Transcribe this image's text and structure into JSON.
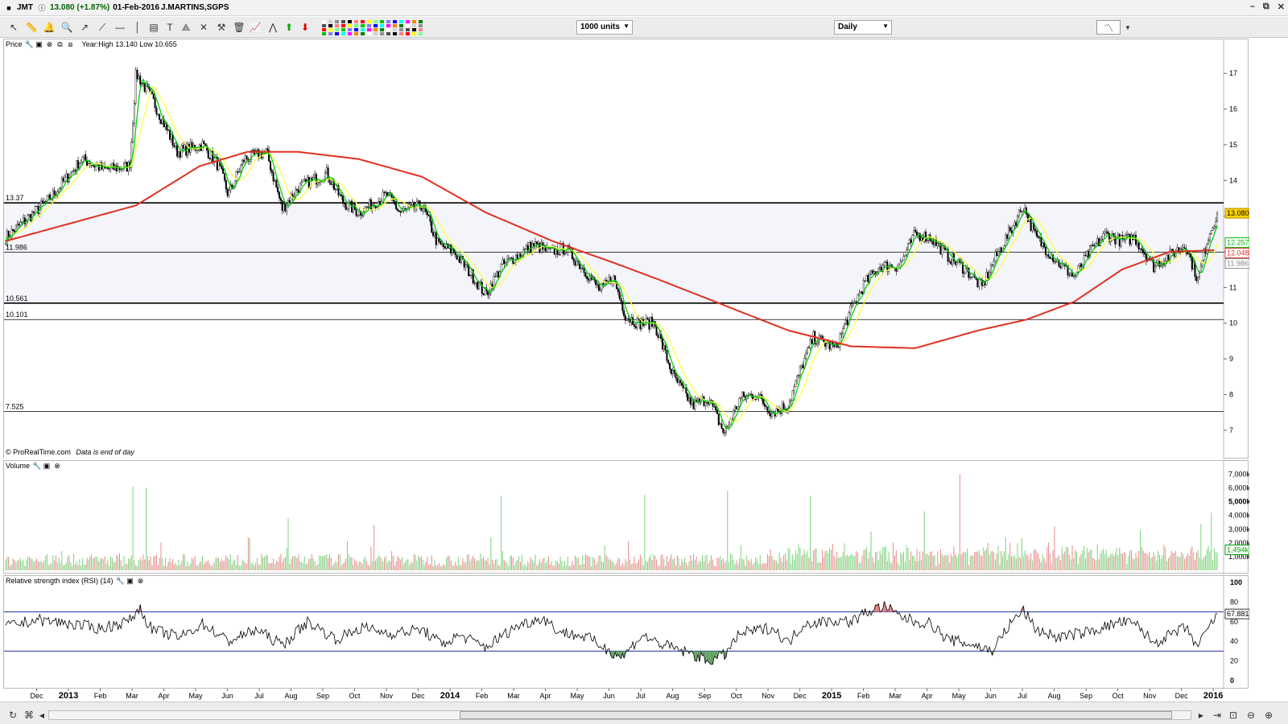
{
  "window": {
    "ticker": "JMT",
    "quote": "13.080 (+1.87%)",
    "date": "01-Feb-2016",
    "name": "J.MARTINS,SGPS"
  },
  "toolbar": {
    "units_select": "1000 units",
    "period_select": "Daily"
  },
  "price_panel": {
    "label": "Price",
    "info": "Year:High 13.140 Low 10.655",
    "footer_brand": "© ProRealTime.com",
    "footer_note": "Data is end of day",
    "levels": [
      {
        "label": "13.37",
        "value": 13.37,
        "weight": "bold"
      },
      {
        "label": "11.986",
        "value": 11.986,
        "weight": "thin"
      },
      {
        "label": "10.561",
        "value": 10.561,
        "weight": "bold"
      },
      {
        "label": "10.101",
        "value": 10.101,
        "weight": "thin"
      },
      {
        "label": "7.525",
        "value": 7.525,
        "weight": "thin"
      }
    ],
    "y_ticks": [
      "7",
      "8",
      "9",
      "10",
      "11",
      "12",
      "13",
      "14",
      "15",
      "16",
      "17"
    ],
    "badges": [
      {
        "label": "13.080",
        "value": 13.08,
        "bg": "#ffd200",
        "border": "#b38f00"
      },
      {
        "label": "12.257",
        "value": 12.257,
        "bg": "#ffffff",
        "border": "#00c000"
      },
      {
        "label": "12.048",
        "value": 12.048,
        "bg": "#ffffff",
        "border": "#e03020"
      },
      {
        "label": "11.986",
        "value": 11.986,
        "bg": "#ffffff",
        "border": "#888888"
      }
    ]
  },
  "volume_panel": {
    "label": "Volume",
    "y_ticks": [
      "1,000k",
      "2,000k",
      "3,000k",
      "4,000k",
      "5,000k",
      "6,000k",
      "7,000k"
    ],
    "y_tick_values": [
      1000,
      2000,
      3000,
      4000,
      5000,
      6000,
      7000
    ],
    "badge": "1,494k",
    "badge_value": 1494
  },
  "rsi_panel": {
    "label": "Relative strength index (RSI) (14)",
    "y_ticks": [
      "0",
      "20",
      "40",
      "60",
      "80",
      "100"
    ],
    "y_tick_values": [
      0,
      20,
      40,
      60,
      80,
      100
    ],
    "badge": "67.881",
    "badge_value": 67.881,
    "overbought": 70,
    "oversold": 30
  },
  "x_axis": {
    "labels": [
      "Dec",
      "2013",
      "Feb",
      "Mar",
      "Apr",
      "May",
      "Jun",
      "Jul",
      "Aug",
      "Sep",
      "Oct",
      "Nov",
      "Dec",
      "2014",
      "Feb",
      "Mar",
      "Apr",
      "May",
      "Jun",
      "Jul",
      "Aug",
      "Sep",
      "Oct",
      "Nov",
      "Dec",
      "2015",
      "Feb",
      "Mar",
      "Apr",
      "May",
      "Jun",
      "Jul",
      "Aug",
      "Sep",
      "Oct",
      "Nov",
      "Dec",
      "2016"
    ],
    "bold": [
      "2013",
      "2014",
      "2015",
      "2016"
    ]
  },
  "chart_data": {
    "type": "candlestick",
    "ylim": [
      6.5,
      17.5
    ],
    "x_start": "2012-11",
    "x_end": "2016-02",
    "price_anchors": [
      [
        0,
        12.4
      ],
      [
        1.4,
        13.5
      ],
      [
        2.4,
        14.6
      ],
      [
        3.1,
        14.3
      ],
      [
        3.9,
        14.4
      ],
      [
        4.1,
        17.0
      ],
      [
        4.6,
        16.3
      ],
      [
        5.4,
        14.8
      ],
      [
        6.2,
        15.0
      ],
      [
        6.7,
        14.4
      ],
      [
        7.0,
        13.6
      ],
      [
        7.5,
        14.6
      ],
      [
        8.2,
        14.8
      ],
      [
        8.7,
        13.2
      ],
      [
        9.2,
        13.8
      ],
      [
        10.1,
        14.2
      ],
      [
        10.6,
        13.4
      ],
      [
        11.1,
        13.1
      ],
      [
        12.0,
        13.6
      ],
      [
        12.4,
        13.1
      ],
      [
        13.1,
        13.3
      ],
      [
        13.6,
        12.2
      ],
      [
        14.1,
        12.0
      ],
      [
        14.7,
        11.3
      ],
      [
        15.1,
        10.8
      ],
      [
        15.6,
        11.6
      ],
      [
        16.1,
        11.9
      ],
      [
        16.6,
        12.2
      ],
      [
        17.1,
        12.0
      ],
      [
        17.6,
        12.1
      ],
      [
        18.2,
        11.5
      ],
      [
        18.7,
        10.9
      ],
      [
        19.1,
        11.3
      ],
      [
        19.5,
        10.2
      ],
      [
        19.9,
        10.0
      ],
      [
        20.4,
        10.0
      ],
      [
        21.0,
        8.5
      ],
      [
        21.6,
        7.7
      ],
      [
        22.1,
        7.9
      ],
      [
        22.6,
        6.9
      ],
      [
        23.1,
        7.9
      ],
      [
        23.6,
        8.0
      ],
      [
        24.1,
        7.5
      ],
      [
        24.6,
        7.7
      ],
      [
        25.0,
        8.7
      ],
      [
        25.4,
        9.6
      ],
      [
        26.1,
        9.3
      ],
      [
        26.6,
        10.4
      ],
      [
        27.0,
        11.1
      ],
      [
        27.5,
        11.6
      ],
      [
        28.1,
        11.6
      ],
      [
        28.6,
        12.5
      ],
      [
        29.1,
        12.4
      ],
      [
        29.6,
        11.9
      ],
      [
        30.2,
        11.5
      ],
      [
        30.7,
        11.0
      ],
      [
        31.1,
        11.8
      ],
      [
        31.6,
        12.6
      ],
      [
        32.0,
        13.3
      ],
      [
        32.4,
        12.4
      ],
      [
        33.1,
        11.7
      ],
      [
        33.6,
        11.3
      ],
      [
        34.1,
        12.0
      ],
      [
        34.6,
        12.5
      ],
      [
        35.1,
        12.3
      ],
      [
        35.5,
        12.4
      ],
      [
        36.1,
        11.6
      ],
      [
        36.6,
        11.9
      ],
      [
        37.1,
        12.2
      ],
      [
        37.5,
        11.2
      ],
      [
        37.8,
        12.4
      ],
      [
        38.1,
        13.08
      ]
    ],
    "sma_200_anchors": [
      [
        0,
        12.3
      ],
      [
        4.1,
        13.3
      ],
      [
        6.1,
        14.4
      ],
      [
        7.6,
        14.8
      ],
      [
        9.2,
        14.8
      ],
      [
        11.1,
        14.6
      ],
      [
        13.1,
        14.1
      ],
      [
        15.1,
        13.1
      ],
      [
        17.2,
        12.3
      ],
      [
        19.1,
        11.7
      ],
      [
        20.6,
        11.2
      ],
      [
        22.6,
        10.5
      ],
      [
        24.6,
        9.8
      ],
      [
        26.6,
        9.35
      ],
      [
        28.6,
        9.3
      ],
      [
        30.6,
        9.8
      ],
      [
        32.1,
        10.1
      ],
      [
        33.6,
        10.6
      ],
      [
        35.1,
        11.5
      ],
      [
        36.6,
        12.0
      ],
      [
        38.1,
        12.048
      ]
    ],
    "rsi_anchors": [
      [
        0,
        55
      ],
      [
        1,
        62
      ],
      [
        2,
        58
      ],
      [
        3,
        53
      ],
      [
        3.9,
        61
      ],
      [
        4.2,
        74
      ],
      [
        4.6,
        52
      ],
      [
        5.5,
        44
      ],
      [
        6.2,
        58
      ],
      [
        7.0,
        40
      ],
      [
        7.9,
        52
      ],
      [
        8.7,
        36
      ],
      [
        9.5,
        60
      ],
      [
        10.4,
        42
      ],
      [
        11.2,
        54
      ],
      [
        12.1,
        48
      ],
      [
        13.1,
        52
      ],
      [
        13.7,
        37
      ],
      [
        14.3,
        46
      ],
      [
        15.1,
        34
      ],
      [
        16.1,
        56
      ],
      [
        16.9,
        64
      ],
      [
        17.4,
        50
      ],
      [
        18.3,
        44
      ],
      [
        18.9,
        32
      ],
      [
        19.4,
        24
      ],
      [
        20.0,
        46
      ],
      [
        20.7,
        36
      ],
      [
        21.5,
        28
      ],
      [
        22.1,
        20
      ],
      [
        22.6,
        26
      ],
      [
        23.1,
        48
      ],
      [
        24.1,
        54
      ],
      [
        24.6,
        38
      ],
      [
        25.1,
        58
      ],
      [
        26.1,
        61
      ],
      [
        26.6,
        60
      ],
      [
        27.1,
        70
      ],
      [
        27.6,
        76
      ],
      [
        28.1,
        66
      ],
      [
        28.6,
        60
      ],
      [
        29.1,
        58
      ],
      [
        29.6,
        42
      ],
      [
        30.5,
        36
      ],
      [
        31.0,
        30
      ],
      [
        31.6,
        58
      ],
      [
        32.0,
        72
      ],
      [
        32.4,
        52
      ],
      [
        33.1,
        44
      ],
      [
        34.1,
        50
      ],
      [
        35.1,
        60
      ],
      [
        35.6,
        56
      ],
      [
        36.1,
        38
      ],
      [
        36.6,
        46
      ],
      [
        37.1,
        54
      ],
      [
        37.5,
        34
      ],
      [
        37.8,
        52
      ],
      [
        38.1,
        67.881
      ]
    ],
    "volume_spikes": [
      [
        4.0,
        6100
      ],
      [
        4.4,
        6000
      ],
      [
        8.9,
        3800
      ],
      [
        11.6,
        3300
      ],
      [
        15.6,
        5400
      ],
      [
        20.1,
        5500
      ],
      [
        22.7,
        5800
      ],
      [
        25.3,
        5400
      ],
      [
        28.9,
        4300
      ],
      [
        30.0,
        7000
      ],
      [
        33.0,
        3200
      ],
      [
        37.9,
        4200
      ],
      [
        37.6,
        3400
      ]
    ],
    "sma_fast_color": "#00d000",
    "sma_mid_color": "#ffff40",
    "sma_200_color": "#e03020",
    "up_color": "#000000",
    "down_color": "#000000",
    "vol_up_color": "#7cd37c",
    "vol_down_color": "#e58a8a"
  }
}
